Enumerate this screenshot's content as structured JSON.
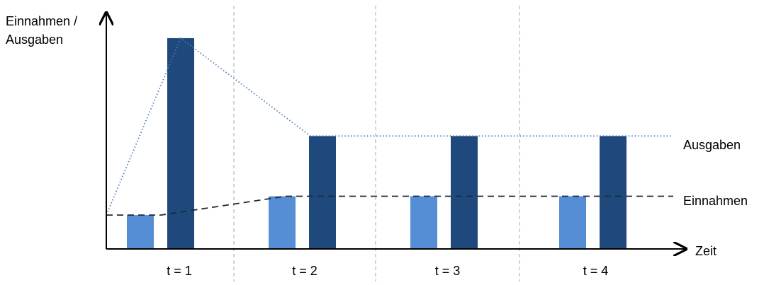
{
  "chart_data": {
    "type": "bar",
    "ylabel_lines": [
      "Einnahmen /",
      "Ausgaben"
    ],
    "xlabel": "Zeit",
    "categories": [
      "t = 1",
      "t = 2",
      "t = 3",
      "t = 4"
    ],
    "series": [
      {
        "name": "Einnahmen",
        "values": [
          45,
          70,
          70,
          70
        ],
        "color": "#558ED5"
      },
      {
        "name": "Ausgaben",
        "values": [
          280,
          150,
          150,
          150
        ],
        "color": "#1F497D"
      }
    ],
    "ylim": [
      0,
      310
    ],
    "trend_lines": [
      {
        "label": "Ausgaben",
        "style": "dotted",
        "color": "#4A7EBB",
        "path_values": [
          {
            "cat": 0,
            "pos": "start",
            "value": 45
          },
          {
            "cat": 0,
            "pos": "top-of-ausgaben",
            "value": 280
          },
          {
            "cat": 1,
            "pos": "top-of-ausgaben",
            "value": 150
          },
          {
            "cat": 3,
            "pos": "end",
            "value": 150
          }
        ]
      },
      {
        "label": "Einnahmen",
        "style": "dashed",
        "color": "#1F2A3A",
        "path_values": [
          {
            "cat": 0,
            "pos": "start",
            "value": 45
          },
          {
            "cat": 0,
            "pos": "after-einnahmen",
            "value": 45
          },
          {
            "cat": 1,
            "pos": "top-of-einnahmen",
            "value": 70
          },
          {
            "cat": 3,
            "pos": "end",
            "value": 70
          }
        ]
      }
    ],
    "grid": false,
    "separators": "dashed vertical between periods",
    "legend": "labels at right end of lines"
  }
}
